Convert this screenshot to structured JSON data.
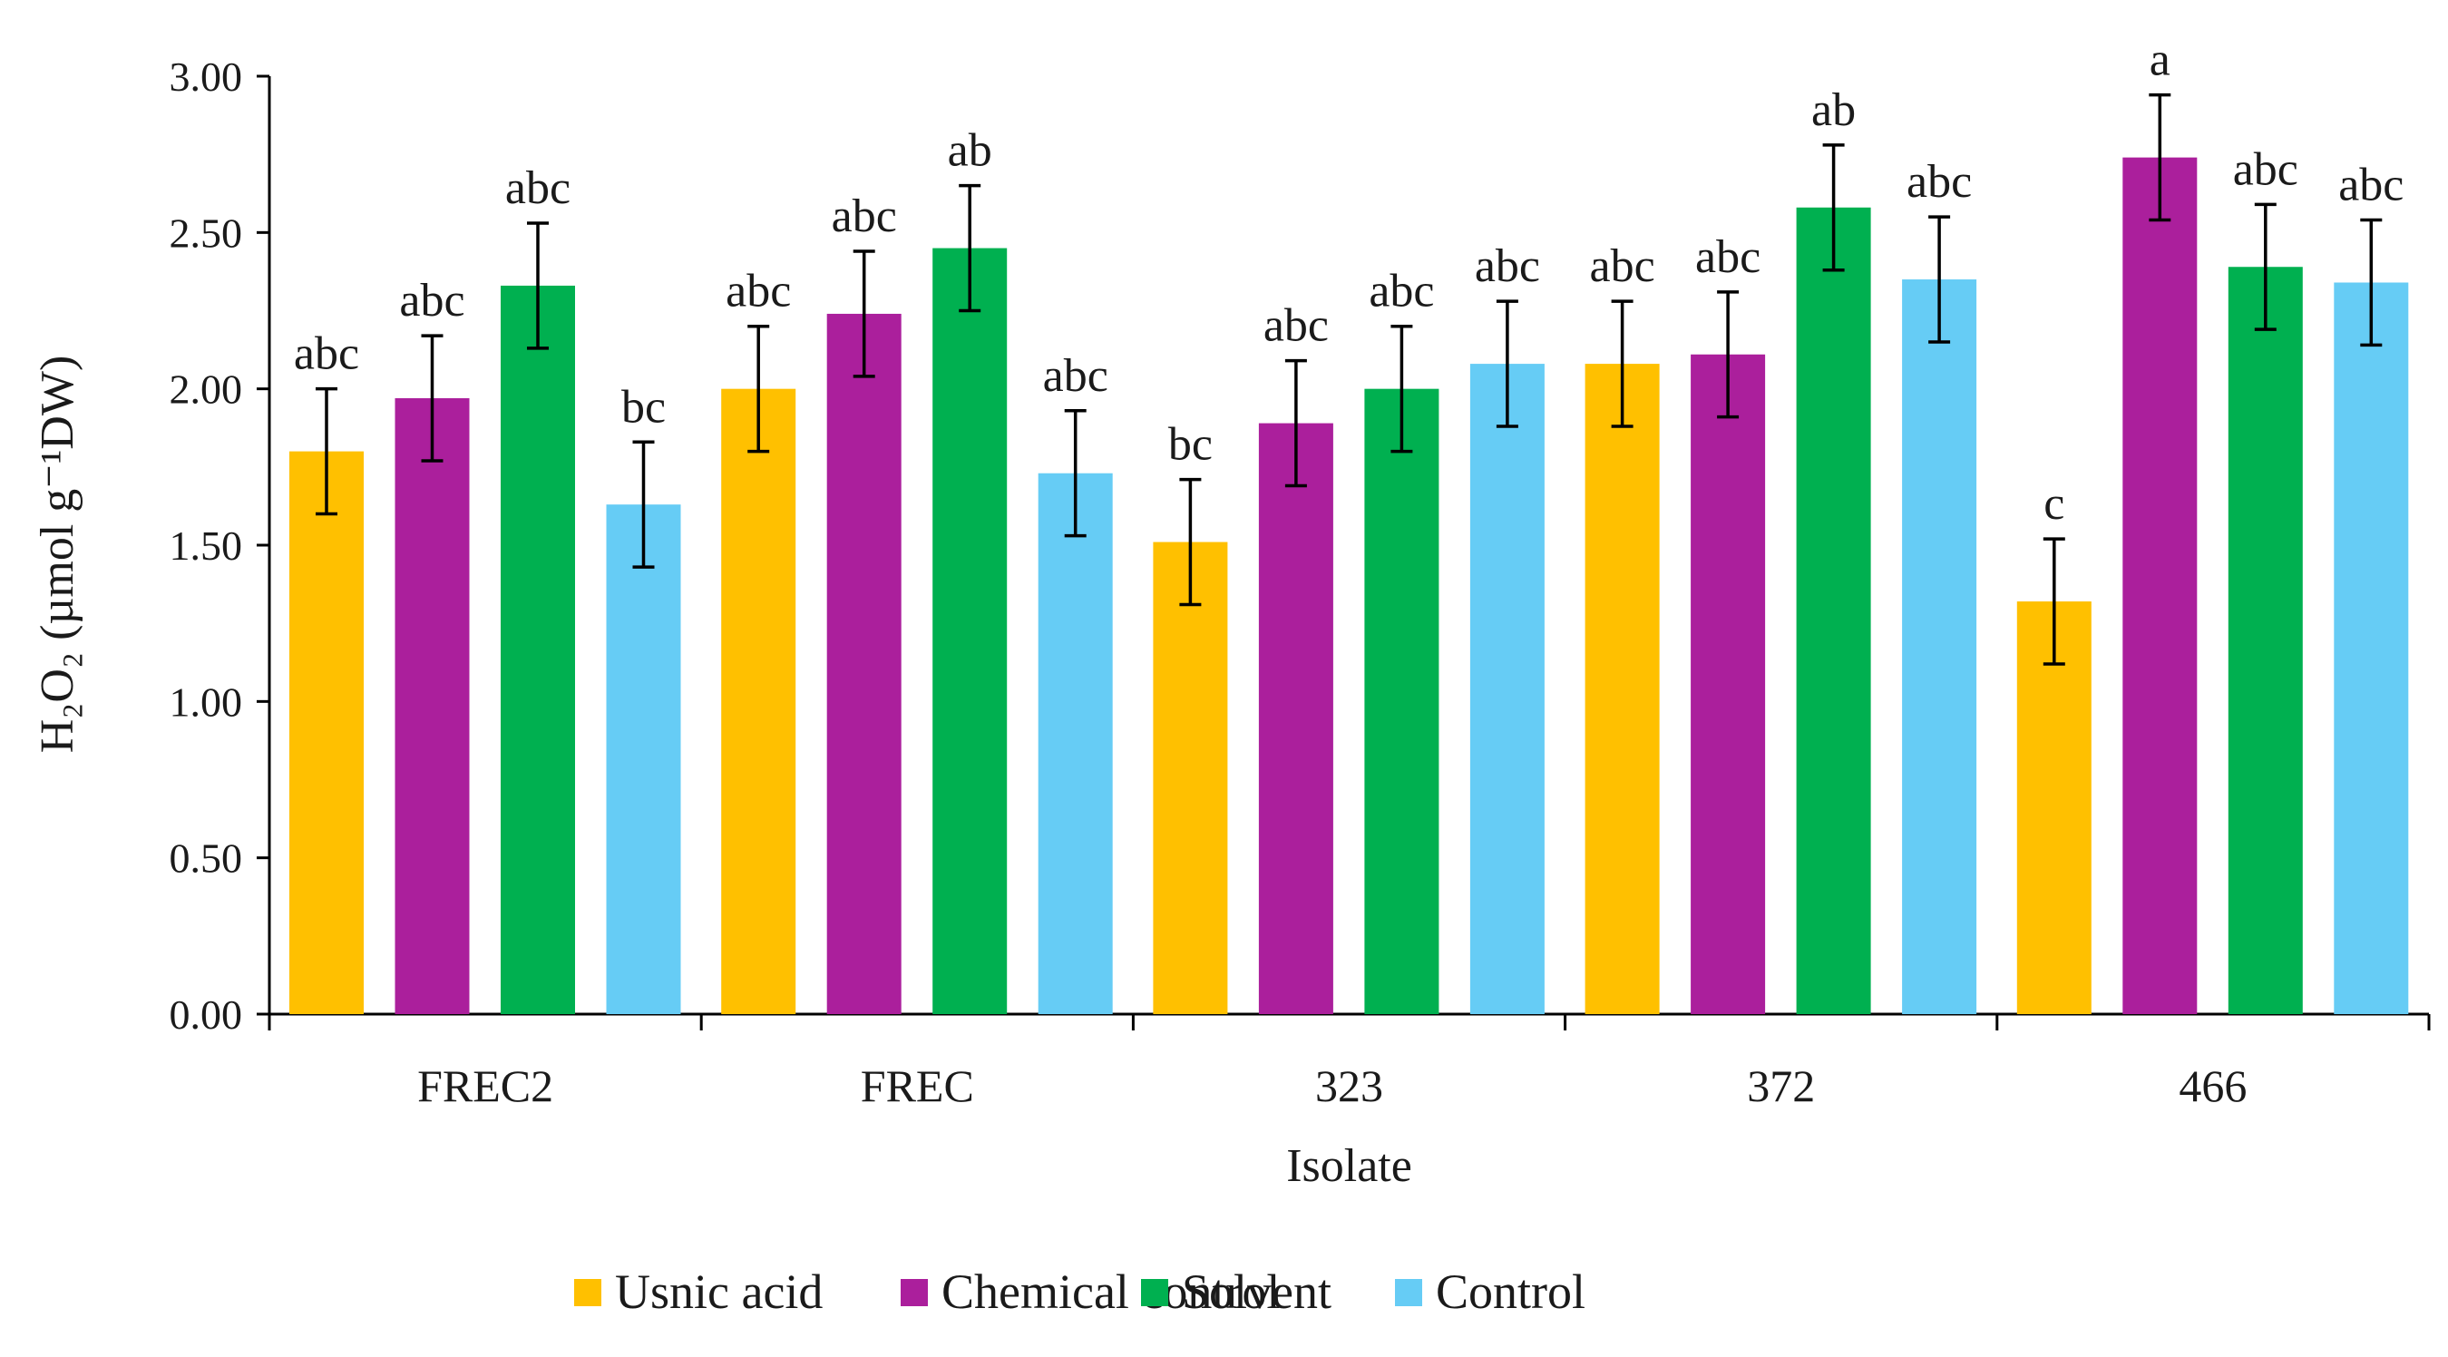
{
  "chart_data": {
    "type": "bar",
    "xlabel": "Isolate",
    "ylabel": "H₂O₂ (µmol g⁻¹DW)",
    "ylim": [
      0,
      3.0
    ],
    "yticks": [
      "0.00",
      "0.50",
      "1.00",
      "1.50",
      "2.00",
      "2.50",
      "3.00"
    ],
    "categories": [
      "FREC2",
      "FREC",
      "323",
      "372",
      "466"
    ],
    "grid": false,
    "legend_position": "bottom",
    "series": [
      {
        "name": "Usnic acid",
        "color": "#FFC000",
        "values": [
          1.8,
          2.0,
          1.51,
          2.08,
          1.32
        ],
        "errors": [
          0.2,
          0.2,
          0.2,
          0.2,
          0.2
        ],
        "labels": [
          "abc",
          "abc",
          "bc",
          "abc",
          "c"
        ]
      },
      {
        "name": "Chemical control",
        "color": "#AB1F9C",
        "values": [
          1.97,
          2.24,
          1.89,
          2.11,
          2.74
        ],
        "errors": [
          0.2,
          0.2,
          0.2,
          0.2,
          0.2
        ],
        "labels": [
          "abc",
          "abc",
          "abc",
          "abc",
          "a"
        ]
      },
      {
        "name": "Solvent",
        "color": "#00B050",
        "values": [
          2.33,
          2.45,
          2.0,
          2.58,
          2.39
        ],
        "errors": [
          0.2,
          0.2,
          0.2,
          0.2,
          0.2
        ],
        "labels": [
          "abc",
          "ab",
          "abc",
          "ab",
          "abc"
        ]
      },
      {
        "name": "Control",
        "color": "#66CCF5",
        "values": [
          1.63,
          1.73,
          2.08,
          2.35,
          2.34
        ],
        "errors": [
          0.2,
          0.2,
          0.2,
          0.2,
          0.2
        ],
        "labels": [
          "bc",
          "abc",
          "abc",
          "abc",
          "abc"
        ]
      }
    ]
  }
}
